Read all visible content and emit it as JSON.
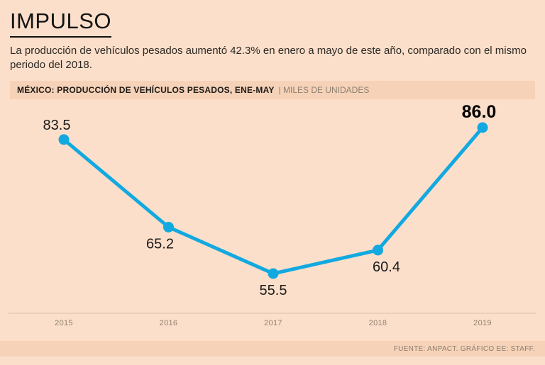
{
  "title": "IMPULSO",
  "subtitle": "La producción de vehículos pesados aumentó 42.3% en enero a mayo de este año, comparado con el mismo periodo del 2018.",
  "kicker": {
    "label": "MÉXICO: PRODUCCIÓN DE VEHÍCULOS PESADOS, ENE-MAY",
    "units": "| MILES DE UNIDADES"
  },
  "footer": {
    "source": "FUENTE: ANPACT. GRÁFICO EE: STAFF."
  },
  "colors": {
    "background": "#fcdfca",
    "band": "#f5d2b8",
    "line": "#12a9e1",
    "axis_line": "#d9bfa5",
    "tick_text": "#8f7f6f",
    "value_text": "#1b1b1b"
  },
  "chart_data": {
    "type": "line",
    "categories": [
      "2015",
      "2016",
      "2017",
      "2018",
      "2019"
    ],
    "values": [
      83.5,
      65.2,
      55.5,
      60.4,
      86.0
    ],
    "title": "MÉXICO: PRODUCCIÓN DE VEHÍCULOS PESADOS, ENE-MAY",
    "ylabel": "MILES DE UNIDADES",
    "ylim": [
      50,
      95
    ],
    "grid": false,
    "legend": "none",
    "highlight_index": 4,
    "label_positions": [
      "above",
      "below",
      "below",
      "below",
      "above"
    ]
  }
}
